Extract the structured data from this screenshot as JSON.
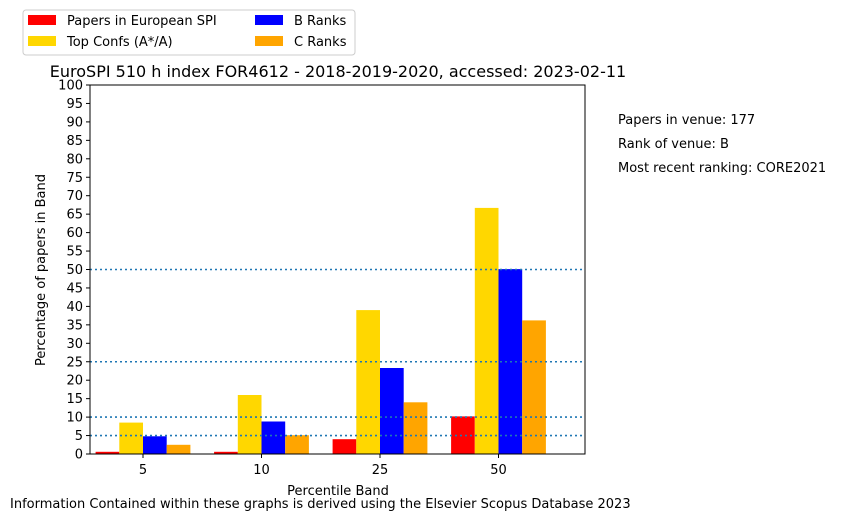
{
  "chart_data": {
    "type": "bar",
    "title": "EuroSPI 510 h index FOR4612 - 2018-2019-2020, accessed: 2023-02-11",
    "xlabel": "Percentile Band",
    "ylabel": "Percentage of papers in Band",
    "categories": [
      "5",
      "10",
      "25",
      "50"
    ],
    "ylim": [
      0,
      100
    ],
    "yticks": [
      0,
      5,
      10,
      15,
      20,
      25,
      30,
      35,
      40,
      45,
      50,
      55,
      60,
      65,
      70,
      75,
      80,
      85,
      90,
      95,
      100
    ],
    "grid": false,
    "reference_lines": [
      5,
      10,
      25,
      50
    ],
    "reference_line_color": "#1f77b4",
    "legend_position": "top-left, above the plot",
    "series": [
      {
        "name": "Papers in European SPI",
        "color": "#ff0000",
        "values": [
          0.6,
          0.6,
          4.0,
          10.2
        ]
      },
      {
        "name": "Top Confs (A*/A)",
        "color": "#ffd700",
        "values": [
          8.5,
          16.0,
          39.0,
          66.7
        ]
      },
      {
        "name": "B Ranks",
        "color": "#0000ff",
        "values": [
          4.8,
          8.8,
          23.3,
          50.1
        ]
      },
      {
        "name": "C Ranks",
        "color": "#ffa500",
        "values": [
          2.5,
          5.1,
          14.0,
          36.2
        ]
      }
    ],
    "side_notes": [
      "Papers in venue: 177",
      "Rank of venue: B",
      "Most recent ranking: CORE2021"
    ],
    "footer": "Information Contained within these graphs is derived using the Elsevier Scopus Database 2023"
  }
}
